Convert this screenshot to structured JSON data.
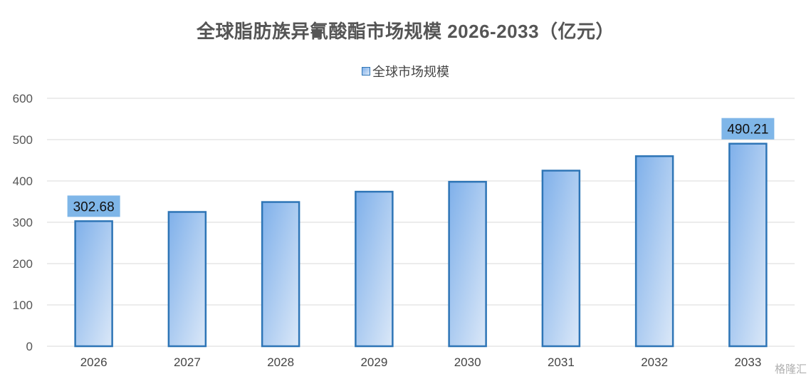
{
  "chart_data": {
    "type": "bar",
    "title": "全球脂肪族异氰酸酯市场规模 2026-2033（亿元）",
    "categories": [
      "2026",
      "2027",
      "2028",
      "2029",
      "2030",
      "2031",
      "2032",
      "2033"
    ],
    "series": [
      {
        "name": "全球市场规模",
        "values": [
          302.68,
          325,
          349,
          374,
          398,
          425,
          460,
          490.21
        ]
      }
    ],
    "data_labels": [
      "302.68",
      "",
      "",
      "",
      "",
      "",
      "",
      "490.21"
    ],
    "yticks": [
      "0",
      "100",
      "200",
      "300",
      "400",
      "500",
      "600"
    ],
    "ylim": [
      0,
      600
    ],
    "grid": true,
    "legend_position": "top",
    "colors": {
      "bar_fill_start": "#7fb0ea",
      "bar_fill_end": "#dbe8f8",
      "bar_stroke": "#2e75b6",
      "label_bg": "#7fb6e8",
      "grid": "#d9d9d9"
    }
  },
  "watermark": "格隆汇"
}
